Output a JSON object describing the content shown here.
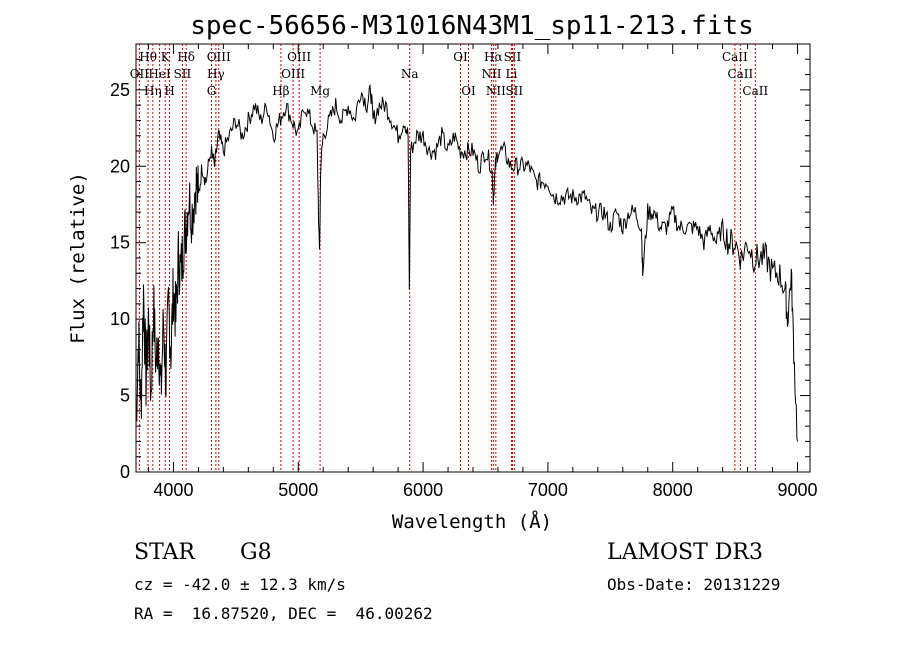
{
  "chart_data": {
    "type": "line",
    "title": "spec-56656-M31016N43M1_sp11-213.fits",
    "xlabel": "Wavelength (Å)",
    "ylabel": "Flux (relative)",
    "xlim": [
      3700,
      9100
    ],
    "ylim": [
      0,
      28
    ],
    "xticks": [
      "4000",
      "5000",
      "6000",
      "7000",
      "8000",
      "9000"
    ],
    "xtick_values": [
      4000,
      5000,
      6000,
      7000,
      8000,
      9000
    ],
    "yticks": [
      "0",
      "5",
      "10",
      "15",
      "20",
      "25"
    ],
    "ytick_values": [
      0,
      5,
      10,
      15,
      20,
      25
    ],
    "series": [
      {
        "name": "flux",
        "x": [
          3700,
          3720,
          3740,
          3760,
          3780,
          3800,
          3820,
          3840,
          3860,
          3880,
          3900,
          3920,
          3940,
          3960,
          3980,
          4000,
          4020,
          4040,
          4060,
          4080,
          4100,
          4120,
          4150,
          4180,
          4200,
          4230,
          4260,
          4300,
          4330,
          4360,
          4400,
          4450,
          4500,
          4550,
          4600,
          4650,
          4700,
          4750,
          4800,
          4850,
          4900,
          4950,
          5000,
          5050,
          5100,
          5150,
          5170,
          5180,
          5200,
          5250,
          5300,
          5350,
          5400,
          5450,
          5500,
          5550,
          5580,
          5600,
          5650,
          5700,
          5750,
          5800,
          5850,
          5880,
          5890,
          5900,
          5950,
          6000,
          6050,
          6100,
          6150,
          6200,
          6250,
          6300,
          6350,
          6400,
          6450,
          6500,
          6550,
          6563,
          6580,
          6600,
          6650,
          6700,
          6750,
          6800,
          6850,
          6900,
          6950,
          7000,
          7050,
          7100,
          7150,
          7200,
          7250,
          7300,
          7350,
          7400,
          7450,
          7500,
          7550,
          7600,
          7650,
          7700,
          7750,
          7760,
          7800,
          7850,
          7900,
          7950,
          8000,
          8050,
          8100,
          8150,
          8200,
          8250,
          8300,
          8350,
          8400,
          8450,
          8500,
          8550,
          8600,
          8650,
          8700,
          8750,
          8800,
          8850,
          8900,
          8920,
          8950,
          8970,
          9000
        ],
        "y": [
          3,
          9,
          4,
          12,
          6,
          10,
          5,
          11,
          7,
          9,
          5,
          10,
          6,
          11,
          8,
          12,
          10,
          14,
          13,
          15,
          16,
          18,
          17,
          19,
          18,
          20,
          19,
          21,
          20,
          22,
          21,
          22,
          23,
          22,
          23,
          24,
          23,
          24,
          22,
          23,
          24,
          23,
          22,
          24,
          23,
          22,
          14,
          20,
          22,
          23,
          24,
          23,
          24,
          23,
          25,
          24,
          25,
          23,
          24,
          24,
          23,
          22,
          23,
          22,
          12,
          21,
          22,
          22,
          21,
          21,
          22,
          21,
          22,
          21,
          21,
          21,
          20,
          21,
          20,
          18,
          20,
          21,
          21,
          20,
          20,
          20,
          20,
          19,
          19,
          19,
          18,
          18,
          18,
          18,
          18,
          18,
          17,
          17,
          17,
          16,
          17,
          16,
          17,
          17,
          16,
          13,
          17,
          17,
          16,
          16,
          17,
          16,
          16,
          16,
          16,
          15,
          16,
          15,
          16,
          15,
          15,
          14,
          15,
          14,
          14,
          14,
          13,
          13,
          12,
          10,
          13,
          8,
          2
        ]
      }
    ],
    "spectral_lines": [
      {
        "label": "Hθ",
        "wavelength": 3797,
        "row": 0
      },
      {
        "label": "OII",
        "wavelength": 3727,
        "row": 1
      },
      {
        "label": "Hη",
        "wavelength": 3835,
        "row": 2
      },
      {
        "label": "HeI",
        "wavelength": 3889,
        "row": 1
      },
      {
        "label": "K",
        "wavelength": 3934,
        "row": 0
      },
      {
        "label": "H",
        "wavelength": 3969,
        "row": 2
      },
      {
        "label": "SII",
        "wavelength": 4072,
        "row": 1
      },
      {
        "label": "Hδ",
        "wavelength": 4102,
        "row": 0
      },
      {
        "label": "G",
        "wavelength": 4305,
        "row": 2
      },
      {
        "label": "Hγ",
        "wavelength": 4340,
        "row": 1
      },
      {
        "label": "OIII",
        "wavelength": 4363,
        "row": 0
      },
      {
        "label": "Hβ",
        "wavelength": 4861,
        "row": 2
      },
      {
        "label": "OIII",
        "wavelength": 4959,
        "row": 1
      },
      {
        "label": "OIII",
        "wavelength": 5007,
        "row": 0
      },
      {
        "label": "Mg",
        "wavelength": 5175,
        "row": 2
      },
      {
        "label": "Na",
        "wavelength": 5893,
        "row": 1
      },
      {
        "label": "OI",
        "wavelength": 6300,
        "row": 0
      },
      {
        "label": "OI",
        "wavelength": 6364,
        "row": 2
      },
      {
        "label": "NII",
        "wavelength": 6548,
        "row": 1
      },
      {
        "label": "Hα",
        "wavelength": 6563,
        "row": 0
      },
      {
        "label": "NII",
        "wavelength": 6583,
        "row": 2
      },
      {
        "label": "Li",
        "wavelength": 6708,
        "row": 1
      },
      {
        "label": "SII",
        "wavelength": 6716,
        "row": 0
      },
      {
        "label": "SII",
        "wavelength": 6731,
        "row": 2
      },
      {
        "label": "CaII",
        "wavelength": 8498,
        "row": 0
      },
      {
        "label": "CaII",
        "wavelength": 8542,
        "row": 1
      },
      {
        "label": "CaII",
        "wavelength": 8662,
        "row": 2
      }
    ],
    "colors": {
      "spectrum": "#000000",
      "lines": "#d40000"
    }
  },
  "info": {
    "object_class": "STAR",
    "subclass": "G8",
    "survey": "LAMOST DR3",
    "redshift": "cz = -42.0 ± 12.3 km/s",
    "obs_date": "Obs-Date: 20131229",
    "coords": "RA =  16.87520, DEC =  46.00262"
  }
}
